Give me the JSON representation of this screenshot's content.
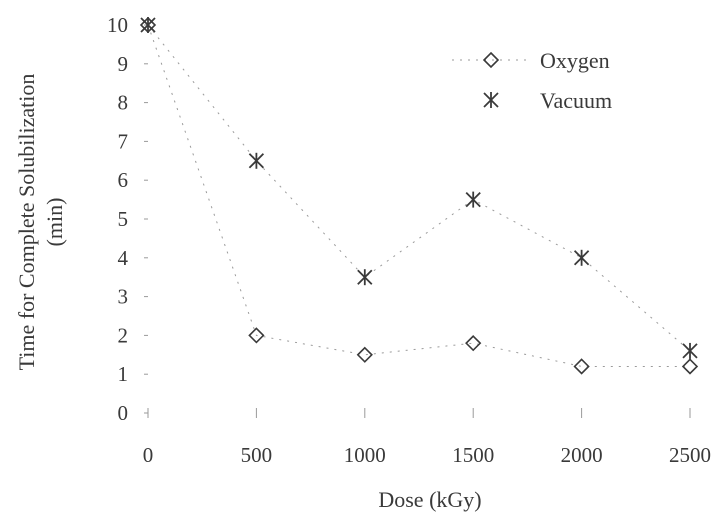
{
  "chart_data": {
    "type": "scatter",
    "title": "",
    "xlabel": "Dose (kGy)",
    "ylabel_lines": [
      "Time for Complete Solubilization",
      "(min)"
    ],
    "xlim": [
      0,
      2500
    ],
    "ylim": [
      0,
      10
    ],
    "x_ticks": [
      0,
      500,
      1000,
      1500,
      2000,
      2500
    ],
    "x_tick_labels": [
      "0",
      "500",
      "1000",
      "1500",
      "2000",
      "2500"
    ],
    "y_ticks": [
      0,
      1,
      2,
      3,
      4,
      5,
      6,
      7,
      8,
      9,
      10
    ],
    "y_tick_labels": [
      "0",
      "1",
      "2",
      "3",
      "4",
      "5",
      "6",
      "7",
      "8",
      "9",
      "10"
    ],
    "grid": false,
    "legend_position": "top-right",
    "series": [
      {
        "name": "Oxygen",
        "marker": "diamond",
        "color": "#3a3a3a",
        "x": [
          0,
          500,
          1000,
          1500,
          2000,
          2500
        ],
        "y": [
          10,
          2.0,
          1.5,
          1.8,
          1.2,
          1.2
        ]
      },
      {
        "name": "Vacuum",
        "marker": "star",
        "color": "#3a3a3a",
        "x": [
          0,
          500,
          1000,
          1500,
          2000,
          2500
        ],
        "y": [
          10,
          6.5,
          3.5,
          5.5,
          4.0,
          1.6
        ]
      }
    ]
  }
}
